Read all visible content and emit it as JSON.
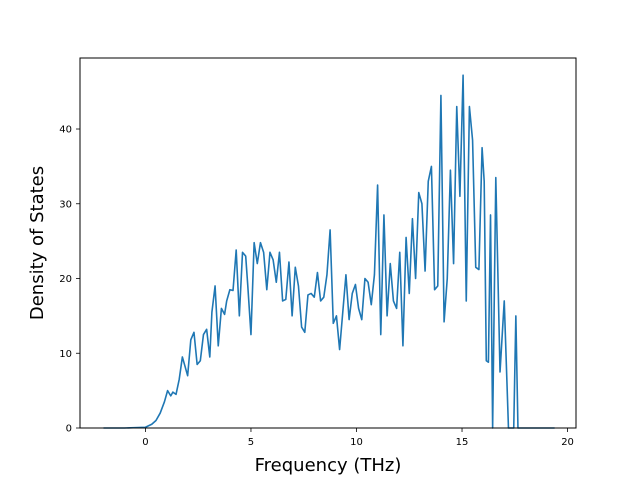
{
  "chart_data": {
    "type": "line",
    "title": "",
    "xlabel": "Frequency (THz)",
    "ylabel": "Density of States",
    "xlim": [
      -3.1,
      20.4
    ],
    "ylim": [
      0,
      49.5
    ],
    "xticks": [
      0,
      5,
      10,
      15,
      20
    ],
    "xtick_labels": [
      "0",
      "5",
      "10",
      "15",
      "20"
    ],
    "yticks": [
      0,
      10,
      20,
      30,
      40
    ],
    "ytick_labels": [
      "0",
      "10",
      "20",
      "30",
      "40"
    ],
    "grid": false,
    "legend": "none",
    "series": [
      {
        "color": "#1f77b4",
        "x": [
          -1.95,
          -1.0,
          0.0,
          0.3,
          0.5,
          0.7,
          0.9,
          1.05,
          1.2,
          1.3,
          1.45,
          1.6,
          1.75,
          1.85,
          2.0,
          2.15,
          2.3,
          2.45,
          2.6,
          2.75,
          2.9,
          3.05,
          3.15,
          3.3,
          3.45,
          3.6,
          3.75,
          3.85,
          4.0,
          4.15,
          4.3,
          4.45,
          4.6,
          4.75,
          4.85,
          5.0,
          5.15,
          5.3,
          5.45,
          5.6,
          5.75,
          5.9,
          6.05,
          6.2,
          6.35,
          6.5,
          6.65,
          6.8,
          6.95,
          7.1,
          7.25,
          7.4,
          7.55,
          7.7,
          7.85,
          8.0,
          8.15,
          8.3,
          8.45,
          8.6,
          8.75,
          8.9,
          9.05,
          9.2,
          9.35,
          9.5,
          9.65,
          9.8,
          9.95,
          10.1,
          10.25,
          10.4,
          10.55,
          10.7,
          10.85,
          11.0,
          11.15,
          11.3,
          11.45,
          11.6,
          11.75,
          11.9,
          12.05,
          12.2,
          12.35,
          12.5,
          12.65,
          12.8,
          12.95,
          13.1,
          13.25,
          13.4,
          13.55,
          13.7,
          13.85,
          14.0,
          14.15,
          14.3,
          14.45,
          14.6,
          14.75,
          14.9,
          15.05,
          15.2,
          15.35,
          15.5,
          15.65,
          15.8,
          15.95,
          16.05,
          16.15,
          16.25,
          16.35,
          16.45,
          16.6,
          16.8,
          17.0,
          17.2,
          17.3,
          17.45,
          17.55,
          17.65,
          17.8,
          18.5,
          19.35
        ],
        "y": [
          0,
          0,
          0.1,
          0.5,
          1.0,
          2.0,
          3.5,
          5.0,
          4.3,
          4.8,
          4.5,
          6.5,
          9.5,
          8.5,
          7.0,
          11.8,
          12.8,
          8.5,
          9.0,
          12.5,
          13.2,
          9.5,
          15.5,
          19.0,
          11.0,
          16.0,
          15.2,
          17.0,
          18.5,
          18.4,
          23.8,
          15.0,
          23.5,
          23.0,
          19.0,
          12.5,
          24.8,
          22.0,
          24.8,
          23.5,
          18.5,
          23.5,
          22.5,
          19.5,
          23.5,
          17.0,
          17.2,
          22.2,
          15.0,
          21.5,
          19.0,
          13.5,
          12.8,
          17.8,
          18.0,
          17.5,
          20.8,
          17.0,
          17.5,
          20.5,
          26.5,
          14.0,
          15.0,
          10.5,
          15.5,
          20.5,
          14.5,
          18.0,
          19.2,
          16.0,
          14.5,
          20.0,
          19.5,
          16.5,
          20.5,
          32.5,
          12.5,
          28.5,
          15.0,
          22.0,
          17.0,
          16.0,
          23.5,
          11.0,
          25.5,
          18.0,
          28.0,
          20.0,
          31.5,
          30.0,
          21.0,
          33.0,
          35.0,
          18.5,
          19.0,
          44.5,
          14.2,
          20.0,
          34.5,
          22.0,
          43.0,
          31.0,
          47.2,
          17.0,
          43.0,
          38.5,
          21.5,
          21.2,
          37.5,
          33.0,
          9.0,
          8.8,
          28.5,
          0.0,
          33.5,
          7.5,
          17.0,
          0.0,
          0.0,
          0.0,
          15.0,
          0.0,
          0.0,
          0.0,
          0.0
        ]
      }
    ]
  }
}
